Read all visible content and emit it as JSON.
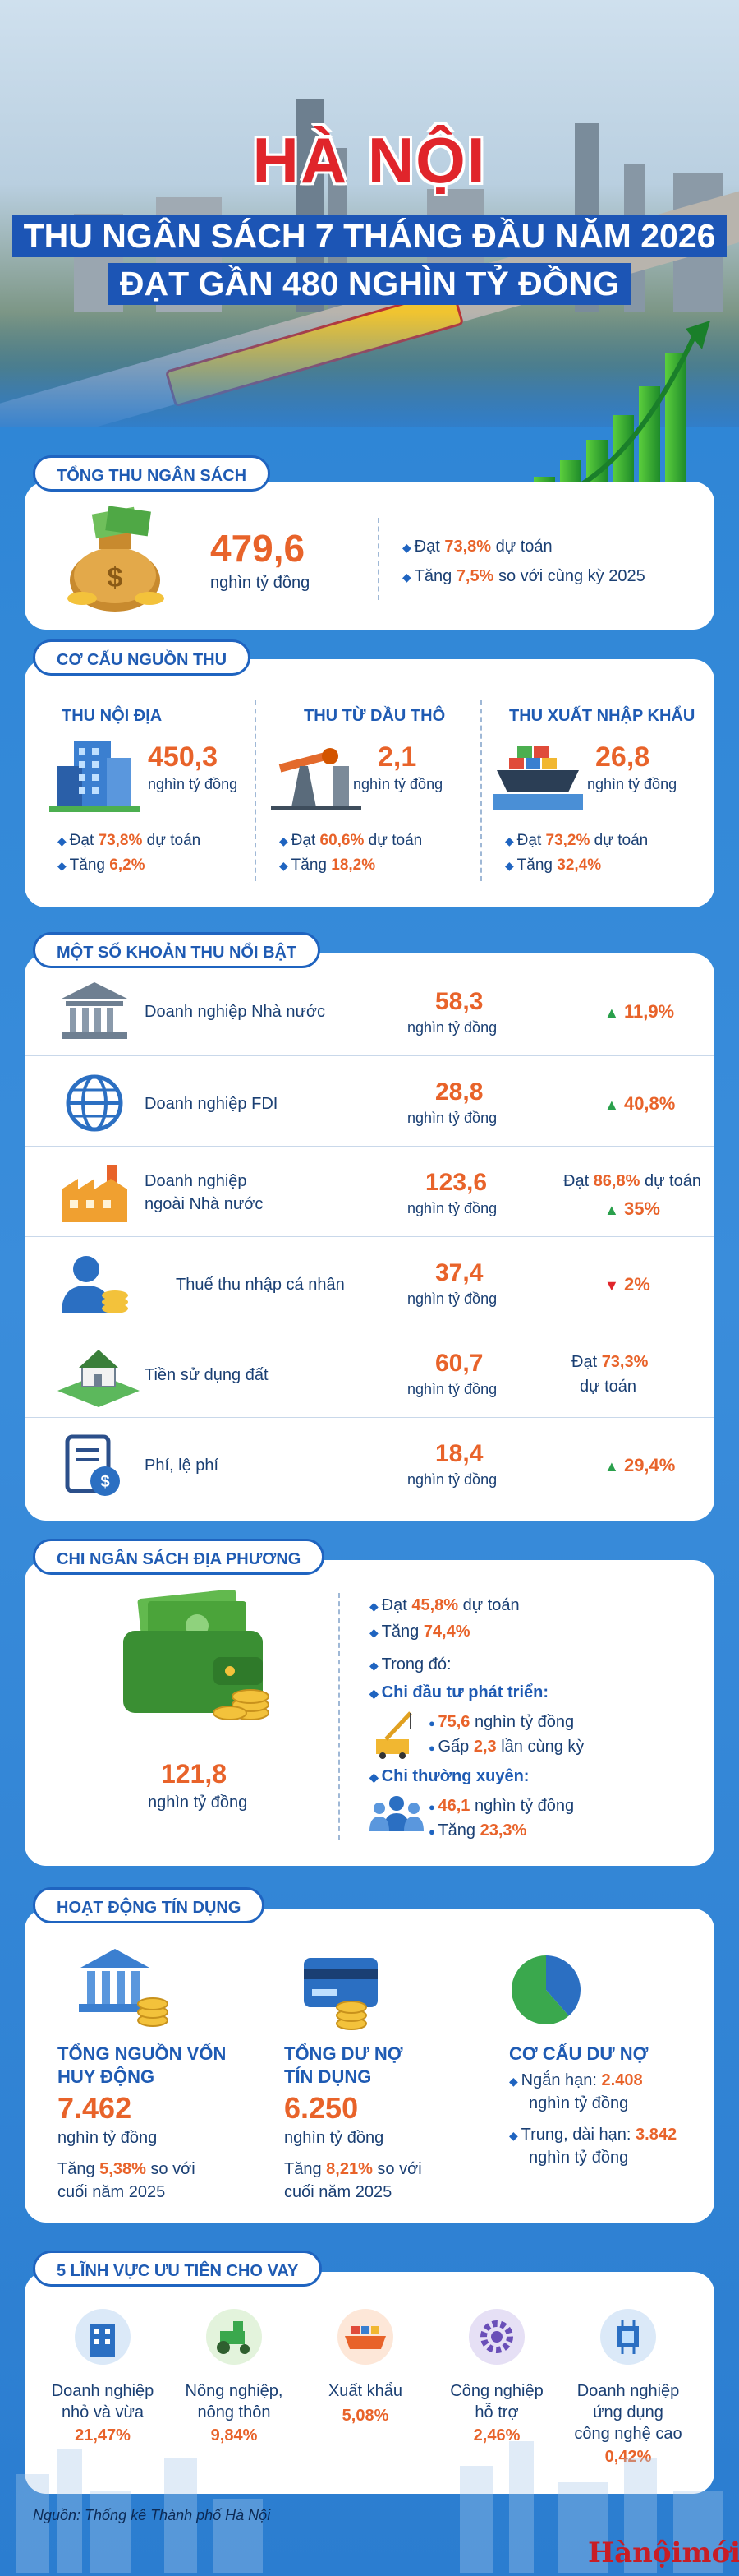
{
  "hero": {
    "title": "HÀ NỘI",
    "subtitle_line1": "THU NGÂN SÁCH 7 THÁNG ĐẦU NĂM 2026",
    "subtitle_line2": "ĐẠT GẦN 480 NGHÌN TỶ ĐỒNG"
  },
  "tong_thu": {
    "label": "TỔNG THU NGÂN SÁCH",
    "value": "479,6",
    "unit": "nghìn tỷ đồng",
    "line1_pre": "Đạt ",
    "line1_val": "73,8%",
    "line1_post": " dự toán",
    "line2_pre": "Tăng ",
    "line2_val": "7,5%",
    "line2_post": " so với cùng kỳ 2025"
  },
  "co_cau": {
    "label": "CƠ CẤU NGUỒN THU",
    "items": [
      {
        "title": "THU NỘI ĐỊA",
        "value": "450,3",
        "unit": "nghìn tỷ đồng",
        "dat_pre": "Đạt ",
        "dat_val": "73,8%",
        "dat_post": " dự toán",
        "tang_pre": "Tăng ",
        "tang_val": "6,2%"
      },
      {
        "title": "THU TỪ DẦU THÔ",
        "value": "2,1",
        "unit": "nghìn tỷ đồng",
        "dat_pre": "Đạt ",
        "dat_val": "60,6%",
        "dat_post": " dự toán",
        "tang_pre": "Tăng ",
        "tang_val": "18,2%"
      },
      {
        "title": "THU XUẤT NHẬP KHẨU",
        "value": "26,8",
        "unit": "nghìn tỷ đồng",
        "dat_pre": "Đạt ",
        "dat_val": "73,2%",
        "dat_post": " dự toán",
        "tang_pre": "Tăng ",
        "tang_val": "32,4%"
      }
    ]
  },
  "khoan_thu": {
    "label": "MỘT SỐ KHOẢN THU NỔI BẬT",
    "unit": "nghìn tỷ đồng",
    "rows": [
      {
        "name": "Doanh nghiệp Nhà nước",
        "value": "58,3",
        "change": "11,9%"
      },
      {
        "name": "Doanh nghiệp FDI",
        "value": "28,8",
        "change": "40,8%"
      },
      {
        "name_l1": "Doanh nghiệp",
        "name_l2": "ngoài Nhà nước",
        "value": "123,6",
        "dat_pre": "Đạt ",
        "dat_val": "86,8%",
        "dat_post": " dự toán",
        "change": "35%"
      },
      {
        "name": "Thuế thu nhập cá nhân",
        "value": "37,4",
        "change": "2%"
      },
      {
        "name": "Tiền sử dụng đất",
        "value": "60,7",
        "dat_pre": "Đạt ",
        "dat_val": "73,3%",
        "dat_post": "dự toán"
      },
      {
        "name": "Phí, lệ phí",
        "value": "18,4",
        "change": "29,4%"
      }
    ]
  },
  "chi": {
    "label": "CHI NGÂN SÁCH ĐỊA PHƯƠNG",
    "value": "121,8",
    "unit": "nghìn tỷ đồng",
    "dat_pre": "Đạt ",
    "dat_val": "45,8%",
    "dat_post": " dự toán",
    "tang_pre": "Tăng ",
    "tang_val": "74,4%",
    "trong_do": "Trong đó:",
    "dtpt_label": "Chi đầu tư phát triển:",
    "dtpt_val": "75,6",
    "dtpt_unit": " nghìn tỷ đồng",
    "dtpt_gap_pre": "Gấp ",
    "dtpt_gap_val": "2,3",
    "dtpt_gap_post": " lần cùng kỳ",
    "tx_label": "Chi thường xuyên:",
    "tx_val": "46,1",
    "tx_unit": " nghìn tỷ đồng",
    "tx_tang_pre": "Tăng ",
    "tx_tang_val": "23,3%"
  },
  "tin_dung": {
    "label": "HOẠT ĐỘNG TÍN DỤNG",
    "huy_dong_t1": "TỔNG NGUỒN VỐN",
    "huy_dong_t2": "HUY ĐỘNG",
    "huy_dong_val": "7.462",
    "huy_dong_unit": "nghìn tỷ đồng",
    "huy_dong_tang_pre": "Tăng ",
    "huy_dong_tang_val": "5,38%",
    "huy_dong_tang_post": " so với",
    "huy_dong_tang_l2": "cuối năm 2025",
    "du_no_t1": "TỔNG DƯ NỢ",
    "du_no_t2": "TÍN DỤNG",
    "du_no_val": "6.250",
    "du_no_unit": "nghìn tỷ đồng",
    "du_no_tang_pre": "Tăng ",
    "du_no_tang_val": "8,21%",
    "du_no_tang_post": " so với",
    "du_no_tang_l2": "cuối năm 2025",
    "co_cau_title": "CƠ CẤU DƯ NỢ",
    "ngan_han_label": "Ngắn hạn: ",
    "ngan_han_val": "2.408",
    "ngan_han_unit": "nghìn tỷ đồng",
    "dai_han_label": "Trung, dài hạn: ",
    "dai_han_val": "3.842",
    "dai_han_unit": "nghìn tỷ đồng",
    "pie": {
      "ngan_han": 2408,
      "dai_han": 3842,
      "color_ngan": "#2b6fc2",
      "color_dai": "#3aa84d"
    }
  },
  "linh_vuc": {
    "label": "5 LĨNH VỰC ƯU TIÊN CHO VAY",
    "items": [
      {
        "l1": "Doanh nghiệp",
        "l2": "nhỏ và vừa",
        "l3": "",
        "pct": "21,47%"
      },
      {
        "l1": "Nông nghiệp,",
        "l2": "nông thôn",
        "l3": "",
        "pct": "9,84%"
      },
      {
        "l1": "Xuất khẩu",
        "l2": "",
        "l3": "",
        "pct": "5,08%"
      },
      {
        "l1": "Công nghiệp",
        "l2": "hỗ trợ",
        "l3": "",
        "pct": "2,46%"
      },
      {
        "l1": "Doanh nghiệp",
        "l2": "ứng dụng",
        "l3": "công nghệ cao",
        "pct": "0,42%"
      }
    ]
  },
  "footer": {
    "source": "Nguồn: Thống kê Thành phố Hà Nội",
    "logo": "Hànộimới"
  }
}
